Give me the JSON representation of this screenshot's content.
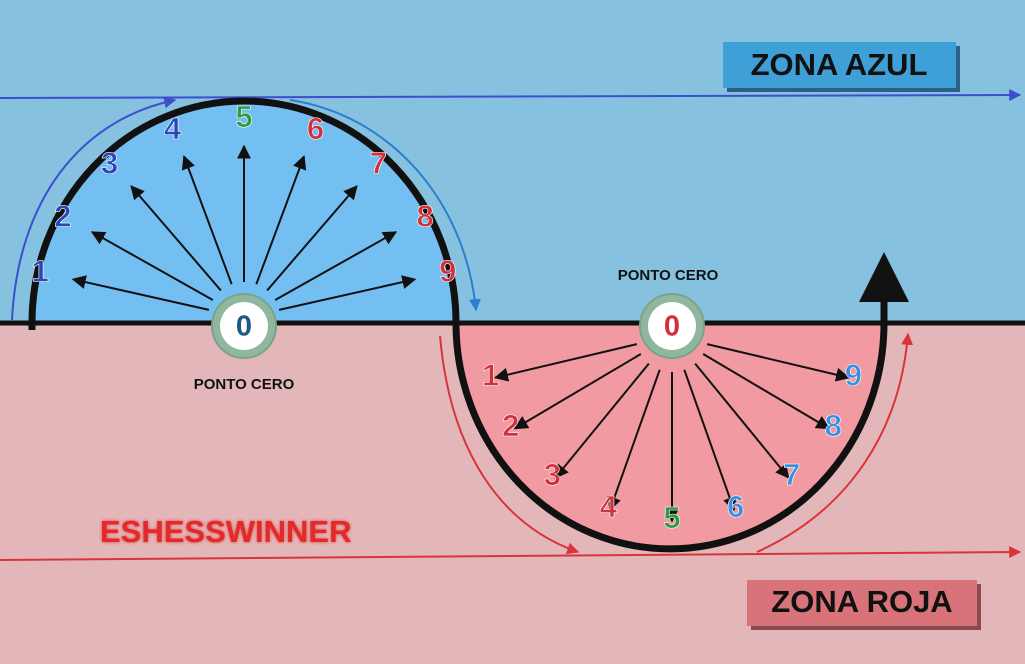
{
  "zones": {
    "blue": {
      "label": "ZONA AZUL",
      "bg": "#86c2df",
      "box_fill": "#3f9fd7",
      "line_color": "#3d4fcf"
    },
    "red": {
      "label": "ZONA ROJA",
      "bg": "#e3b7ba",
      "box_fill": "#d87479",
      "line_color": "#d9343a"
    }
  },
  "watermark": {
    "text": "ESHESSWINNER",
    "color": "#e12a2a"
  },
  "upper_dial": {
    "center_label": "0",
    "caption": "PONTO CERO",
    "fill": "#74bff1",
    "numbers": [
      {
        "n": "1",
        "color": "#2a47b8"
      },
      {
        "n": "2",
        "color": "#2a47b8"
      },
      {
        "n": "3",
        "color": "#2a47b8"
      },
      {
        "n": "4",
        "color": "#2a47b8"
      },
      {
        "n": "5",
        "color": "#2f9a46"
      },
      {
        "n": "6",
        "color": "#d0313a"
      },
      {
        "n": "7",
        "color": "#d0313a"
      },
      {
        "n": "8",
        "color": "#d0313a"
      },
      {
        "n": "9",
        "color": "#d0313a"
      }
    ]
  },
  "lower_dial": {
    "center_label": "0",
    "caption": "PONTO CERO",
    "fill": "#f19aa2",
    "numbers": [
      {
        "n": "1",
        "color": "#d0313a"
      },
      {
        "n": "2",
        "color": "#d0313a"
      },
      {
        "n": "3",
        "color": "#d0313a"
      },
      {
        "n": "4",
        "color": "#d0313a"
      },
      {
        "n": "5",
        "color": "#2f9a46"
      },
      {
        "n": "6",
        "color": "#3b8fe0"
      },
      {
        "n": "7",
        "color": "#3b8fe0"
      },
      {
        "n": "8",
        "color": "#3b8fe0"
      },
      {
        "n": "9",
        "color": "#3b8fe0"
      }
    ]
  }
}
